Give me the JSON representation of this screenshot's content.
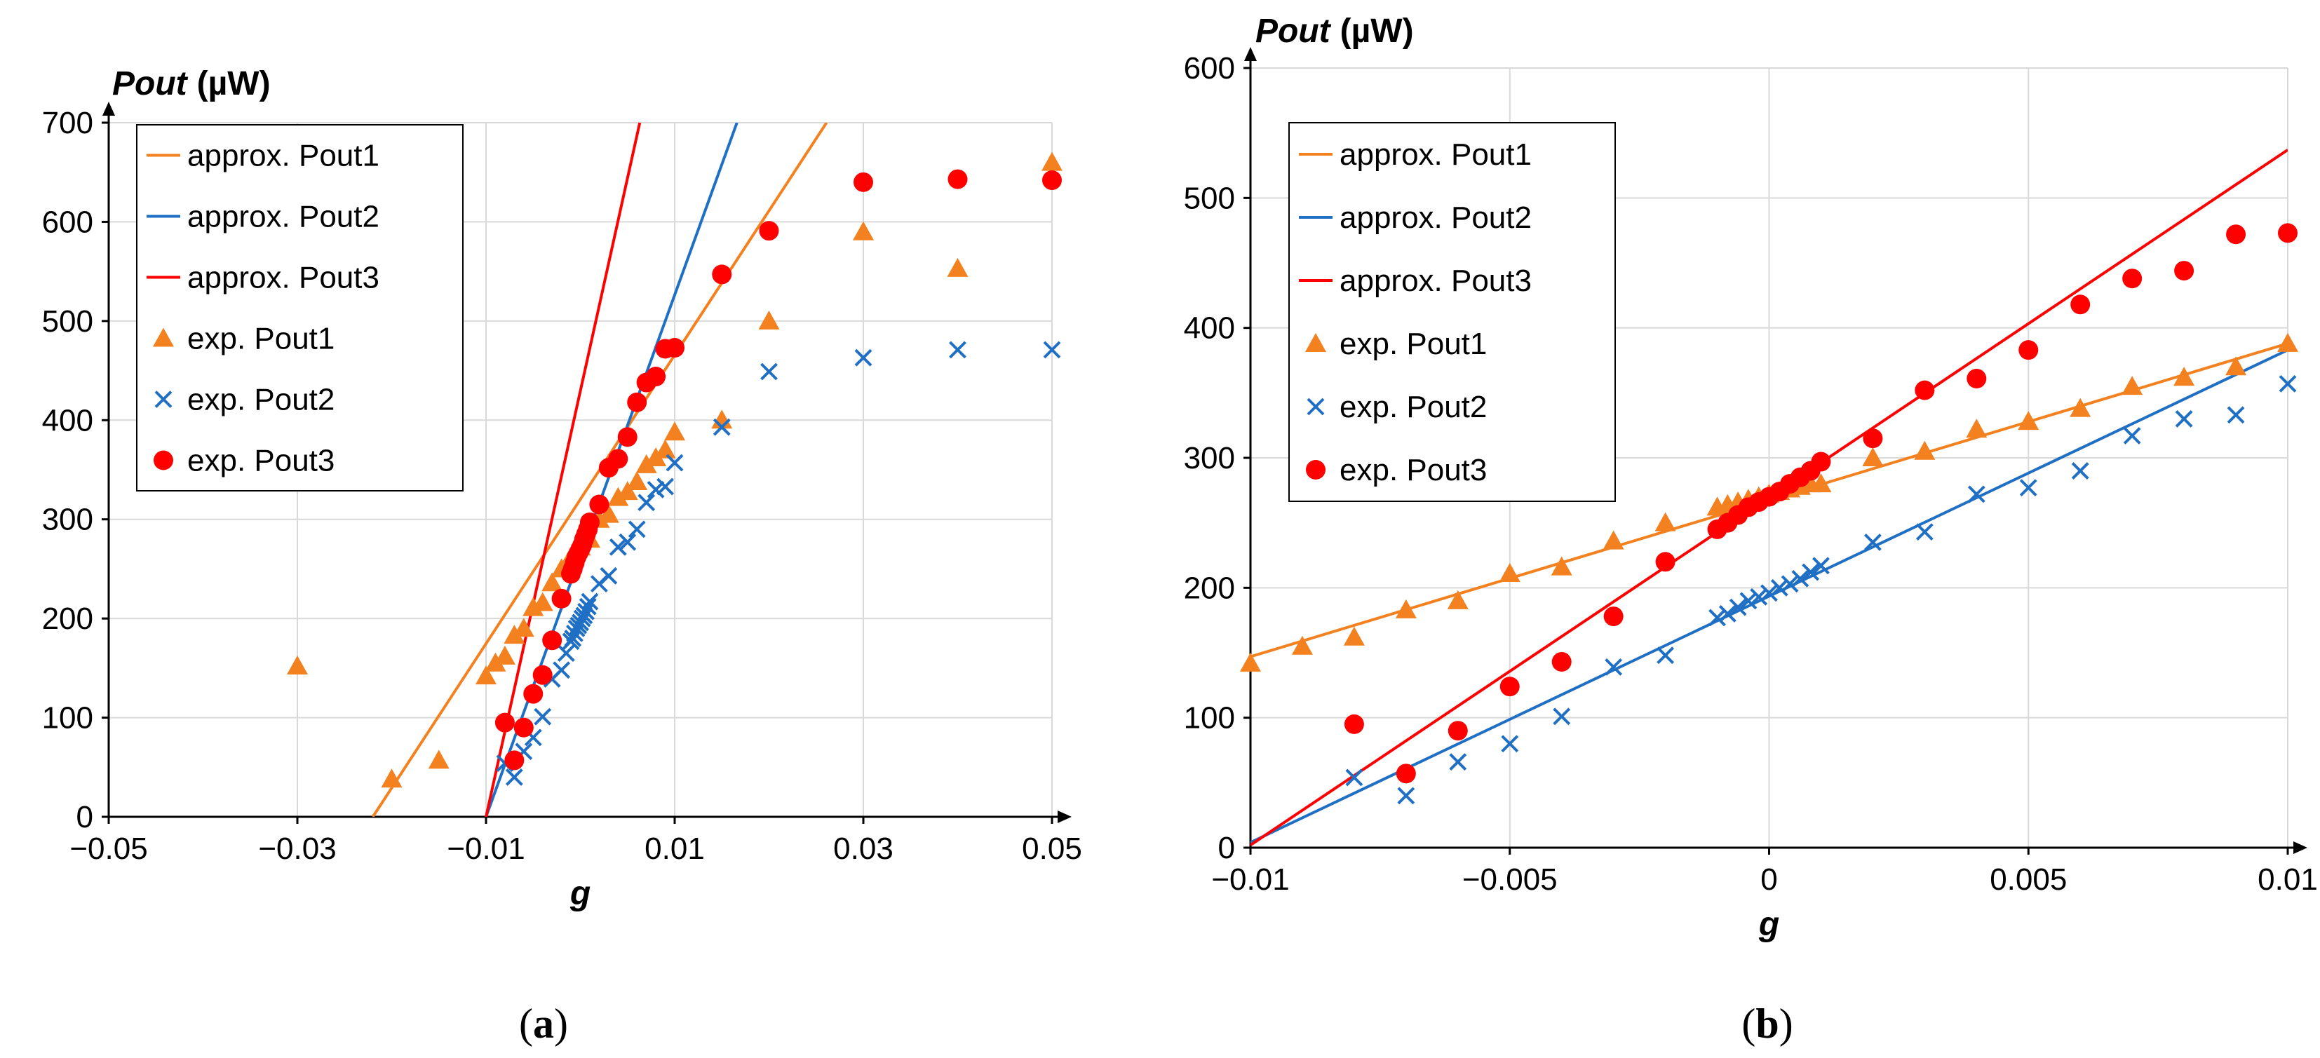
{
  "colors": {
    "pout1": "#f4811f",
    "pout2": "#1f6fc5",
    "pout3": "#ff0000"
  },
  "chart_data": [
    {
      "type": "scatter",
      "caption_letter": "a",
      "xlabel": "g",
      "ylabel": "Pout",
      "yunit": "(µW)",
      "xlim": [
        -0.05,
        0.05
      ],
      "ylim": [
        0,
        700
      ],
      "xticks": [
        -0.05,
        -0.03,
        -0.01,
        0.01,
        0.03,
        0.05
      ],
      "xtick_labels": [
        "−0.05",
        "−0.03",
        "−0.01",
        "0.01",
        "0.03",
        "0.05"
      ],
      "yticks": [
        0,
        100,
        200,
        300,
        400,
        500,
        600,
        700
      ],
      "ytick_labels": [
        "0",
        "100",
        "200",
        "300",
        "400",
        "500",
        "600",
        "700"
      ],
      "grid": true,
      "legend_position": "top-left",
      "series": [
        {
          "name": "approx. Pout1",
          "kind": "line",
          "color": "#f4811f",
          "x": [
            -0.022,
            0.0261
          ],
          "y": [
            0,
            700
          ]
        },
        {
          "name": "approx. Pout2",
          "kind": "line",
          "color": "#1f6fc5",
          "x": [
            -0.01,
            0.0166
          ],
          "y": [
            0,
            700
          ]
        },
        {
          "name": "approx. Pout3",
          "kind": "line",
          "color": "#ff0000",
          "x": [
            -0.01,
            0.0063
          ],
          "y": [
            0,
            700
          ]
        },
        {
          "name": "exp. Pout1",
          "kind": "triangle",
          "color": "#f4811f",
          "x": [
            -0.03,
            -0.02,
            -0.015,
            -0.01,
            -0.009,
            -0.008,
            -0.007,
            -0.006,
            -0.005,
            -0.004,
            -0.003,
            -0.002,
            -0.001,
            0,
            0.001,
            0.002,
            0.003,
            0.004,
            0.005,
            0.006,
            0.007,
            0.008,
            0.009,
            0.01,
            0.015,
            0.02,
            0.03,
            0.04,
            0.05
          ],
          "y": [
            152,
            38,
            57,
            142,
            155,
            162,
            183,
            190,
            211,
            216,
            236,
            250,
            262,
            272,
            280,
            300,
            305,
            322,
            328,
            338,
            355,
            362,
            370,
            388,
            400,
            500,
            590,
            553,
            660
          ]
        },
        {
          "name": "exp. Pout2",
          "kind": "x",
          "color": "#1f6fc5",
          "x": [
            -0.008,
            -0.007,
            -0.006,
            -0.005,
            -0.004,
            -0.003,
            -0.002,
            -0.0015,
            -0.001,
            -0.0008,
            -0.0006,
            -0.0004,
            -0.0002,
            0,
            0.0002,
            0.0004,
            0.0006,
            0.0008,
            0.001,
            0.002,
            0.003,
            0.004,
            0.005,
            0.006,
            0.007,
            0.008,
            0.009,
            0.01,
            0.015,
            0.02,
            0.03,
            0.04,
            0.05
          ],
          "y": [
            54,
            40,
            66,
            80,
            101,
            139,
            148,
            165,
            177,
            180,
            185,
            190,
            193,
            196,
            200,
            203,
            207,
            212,
            217,
            235,
            243,
            272,
            277,
            290,
            317,
            330,
            333,
            357,
            393,
            449,
            463,
            471,
            471
          ]
        },
        {
          "name": "exp. Pout3",
          "kind": "circle",
          "color": "#ff0000",
          "x": [
            -0.008,
            -0.007,
            -0.006,
            -0.005,
            -0.004,
            -0.003,
            -0.002,
            -0.001,
            -0.0008,
            -0.0006,
            -0.0004,
            -0.0002,
            0,
            0.0002,
            0.0004,
            0.0006,
            0.0008,
            0.001,
            0.002,
            0.003,
            0.004,
            0.005,
            0.006,
            0.007,
            0.008,
            0.009,
            0.01,
            0.015,
            0.02,
            0.03,
            0.04,
            0.05
          ],
          "y": [
            95,
            57,
            90,
            124,
            143,
            178,
            220,
            245,
            250,
            256,
            262,
            266,
            270,
            274,
            280,
            285,
            290,
            297,
            315,
            352,
            361,
            383,
            418,
            438,
            444,
            472,
            473,
            547,
            591,
            640,
            643,
            642
          ]
        }
      ]
    },
    {
      "type": "scatter",
      "caption_letter": "b",
      "xlabel": "g",
      "ylabel": "Pout",
      "yunit": "(µW)",
      "xlim": [
        -0.01,
        0.01
      ],
      "ylim": [
        0,
        600
      ],
      "xticks": [
        -0.01,
        -0.005,
        0,
        0.005,
        0.01
      ],
      "xtick_labels": [
        "−0.01",
        "−0.005",
        "0",
        "0.005",
        "0.01"
      ],
      "yticks": [
        0,
        100,
        200,
        300,
        400,
        500,
        600
      ],
      "ytick_labels": [
        "0",
        "100",
        "200",
        "300",
        "400",
        "500",
        "600"
      ],
      "grid": true,
      "legend_position": "top-left",
      "series": [
        {
          "name": "approx. Pout1",
          "kind": "line",
          "color": "#f4811f",
          "x": [
            -0.01,
            0.01
          ],
          "y": [
            147,
            388
          ]
        },
        {
          "name": "approx. Pout2",
          "kind": "line",
          "color": "#1f6fc5",
          "x": [
            -0.01,
            0.01
          ],
          "y": [
            4,
            383
          ]
        },
        {
          "name": "approx. Pout3",
          "kind": "line",
          "color": "#ff0000",
          "x": [
            -0.01,
            0.01
          ],
          "y": [
            2,
            537
          ]
        },
        {
          "name": "exp. Pout1",
          "kind": "triangle",
          "color": "#f4811f",
          "x": [
            -0.01,
            -0.009,
            -0.008,
            -0.007,
            -0.006,
            -0.005,
            -0.004,
            -0.003,
            -0.002,
            -0.001,
            -0.0008,
            -0.0006,
            -0.0004,
            -0.0002,
            0,
            0.0002,
            0.0004,
            0.0006,
            0.0008,
            0.001,
            0.002,
            0.003,
            0.004,
            0.005,
            0.006,
            0.007,
            0.008,
            0.009,
            0.01
          ],
          "y": [
            142,
            155,
            162,
            183,
            190,
            211,
            216,
            236,
            250,
            262,
            264,
            266,
            268,
            270,
            272,
            274,
            276,
            278,
            280,
            280,
            300,
            305,
            322,
            328,
            338,
            355,
            362,
            370,
            388
          ]
        },
        {
          "name": "exp. Pout2",
          "kind": "x",
          "color": "#1f6fc5",
          "x": [
            -0.008,
            -0.007,
            -0.006,
            -0.005,
            -0.004,
            -0.003,
            -0.002,
            -0.001,
            -0.0008,
            -0.0006,
            -0.0004,
            -0.0002,
            0,
            0.0002,
            0.0004,
            0.0006,
            0.0008,
            0.001,
            0.002,
            0.003,
            0.004,
            0.005,
            0.006,
            0.007,
            0.008,
            0.009,
            0.01
          ],
          "y": [
            54,
            40,
            66,
            80,
            101,
            139,
            148,
            177,
            180,
            185,
            190,
            193,
            196,
            200,
            203,
            207,
            212,
            217,
            235,
            243,
            272,
            277,
            290,
            317,
            330,
            333,
            357
          ]
        },
        {
          "name": "exp. Pout3",
          "kind": "circle",
          "color": "#ff0000",
          "x": [
            -0.008,
            -0.007,
            -0.006,
            -0.005,
            -0.004,
            -0.003,
            -0.002,
            -0.001,
            -0.0008,
            -0.0006,
            -0.0004,
            -0.0002,
            0,
            0.0002,
            0.0004,
            0.0006,
            0.0008,
            0.001,
            0.002,
            0.003,
            0.004,
            0.005,
            0.006,
            0.007,
            0.008,
            0.009,
            0.01
          ],
          "y": [
            95,
            57,
            90,
            124,
            143,
            178,
            220,
            245,
            250,
            256,
            262,
            266,
            270,
            274,
            280,
            285,
            290,
            297,
            315,
            352,
            361,
            383,
            418,
            438,
            444,
            472,
            473
          ]
        }
      ]
    }
  ]
}
